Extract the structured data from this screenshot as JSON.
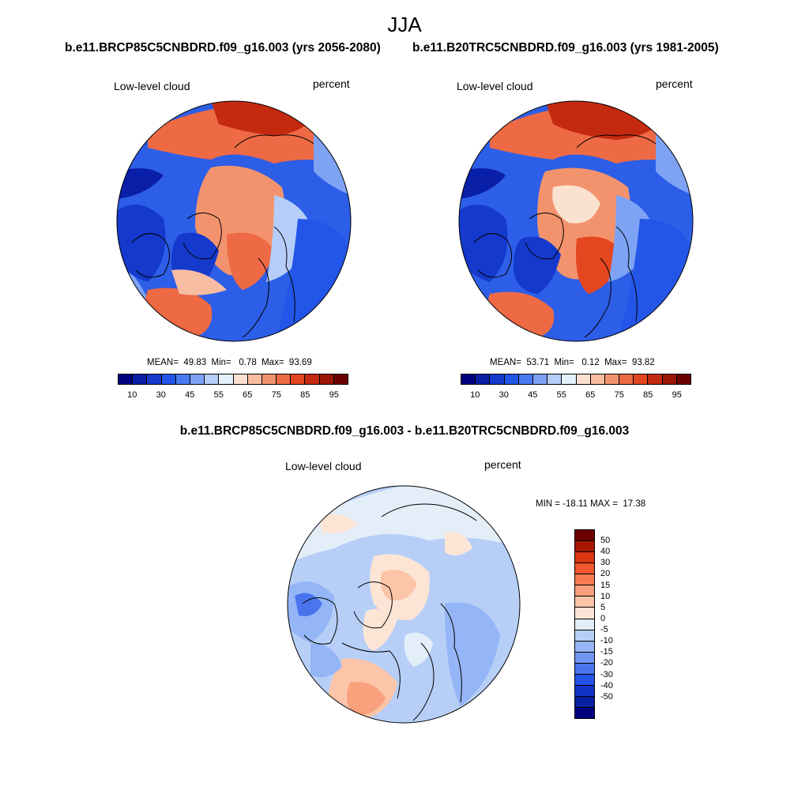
{
  "season": "JJA",
  "panel_a": {
    "title": "b.e11.BRCP85C5CNBDRD.f09_g16.003 (yrs 2056-2080)",
    "left_label": "Low-level cloud",
    "right_label": "percent",
    "stats": "MEAN=  49.83  Min=   0.78  Max=  93.69"
  },
  "panel_b": {
    "title": "b.e11.B20TRC5CNBDRD.f09_g16.003 (yrs 1981-2005)",
    "left_label": "Low-level cloud",
    "right_label": "percent",
    "stats": "MEAN=  53.71  Min=   0.12  Max=  93.82"
  },
  "panel_diff": {
    "title": "b.e11.BRCP85C5CNBDRD.f09_g16.003 - b.e11.B20TRC5CNBDRD.f09_g16.003",
    "left_label": "Low-level cloud",
    "right_label": "percent",
    "stats": "MIN = -18.11 MAX =  17.38"
  },
  "colorbar_main": {
    "colors": [
      "#00007f",
      "#0a1fa8",
      "#1439cc",
      "#2356e8",
      "#4a7af2",
      "#7ea3f5",
      "#b5cdf8",
      "#e3f1fa",
      "#fbe1d0",
      "#f7bda2",
      "#f3936d",
      "#ee6a44",
      "#e44620",
      "#c42a10",
      "#9b1605",
      "#6b0000"
    ],
    "ticks": [
      "10",
      "30",
      "45",
      "55",
      "65",
      "75",
      "85",
      "95"
    ]
  },
  "colorbar_diff": {
    "colors": [
      "#6b0000",
      "#a81800",
      "#dc3514",
      "#f1562e",
      "#f77c54",
      "#f9a07c",
      "#fcc4a8",
      "#fde5d6",
      "#e3eef9",
      "#b7cff7",
      "#94b5f6",
      "#7097f2",
      "#4a74ee",
      "#2552e6",
      "#1233c8",
      "#0a20a2",
      "#00007f"
    ],
    "ticks": [
      "50",
      "40",
      "30",
      "20",
      "15",
      "10",
      "5",
      "0",
      "-5",
      "-10",
      "-15",
      "-20",
      "-30",
      "-40",
      "-50"
    ]
  }
}
